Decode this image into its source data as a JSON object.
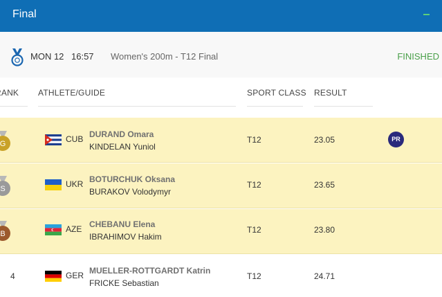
{
  "header": {
    "title": "Final"
  },
  "event": {
    "day": "MON 12",
    "time": "16:57",
    "name": "Women's 200m - T12 Final",
    "status": "FINISHED"
  },
  "columns": {
    "rank": "RANK",
    "athlete": "ATHLETE/GUIDE",
    "sport_class": "SPORT CLASS",
    "result": "RESULT"
  },
  "rows": [
    {
      "rank": "",
      "medal": "gold",
      "medal_letter": "G",
      "country": "CUB",
      "flag": "cuba",
      "athlete": "DURAND Omara",
      "guide": "KINDELAN Yuniol",
      "sport_class": "T12",
      "result": "23.05",
      "record": "PR"
    },
    {
      "rank": "",
      "medal": "silver",
      "medal_letter": "S",
      "country": "UKR",
      "flag": "ukraine",
      "athlete": "BOTURCHUK Oksana",
      "guide": "BURAKOV Volodymyr",
      "sport_class": "T12",
      "result": "23.65",
      "record": ""
    },
    {
      "rank": "",
      "medal": "bronze",
      "medal_letter": "B",
      "country": "AZE",
      "flag": "azerbaijan",
      "athlete": "CHEBANU Elena",
      "guide": "IBRAHIMOV Hakim",
      "sport_class": "T12",
      "result": "23.80",
      "record": ""
    },
    {
      "rank": "4",
      "medal": "",
      "medal_letter": "",
      "country": "GER",
      "flag": "germany",
      "athlete": "MUELLER-ROTTGARDT Katrin",
      "guide": "FRICKE Sebastian",
      "sport_class": "T12",
      "result": "24.71",
      "record": ""
    }
  ],
  "colors": {
    "header_bg": "#0f6eb5",
    "medal_row_bg": "#fcf3c0",
    "finished": "#4aa04a",
    "gold": "#c9a227",
    "silver": "#9a9a9a",
    "bronze": "#9c5a2c",
    "pr_badge": "#2a2a7c"
  }
}
